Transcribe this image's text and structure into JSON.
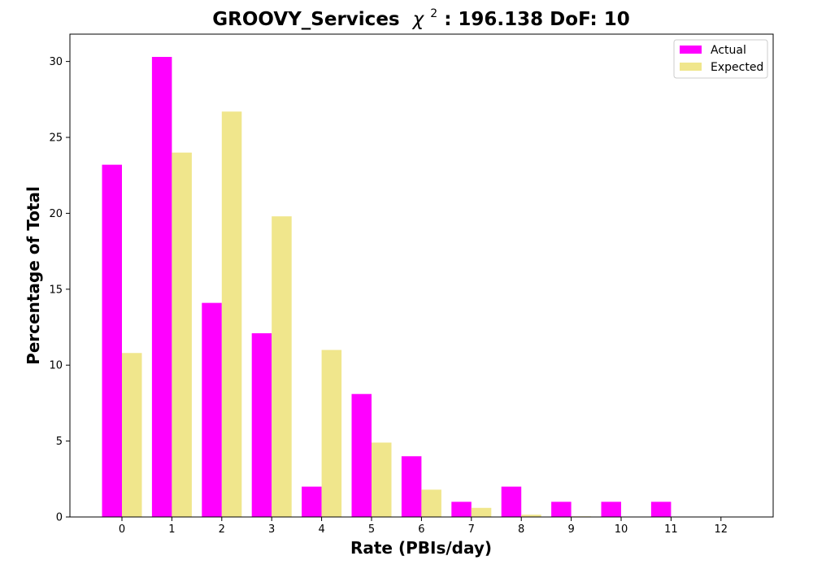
{
  "chart_data": {
    "type": "bar",
    "title": "GROOVY_Services",
    "title_chi_symbol": "χ",
    "title_chi_exponent": "2",
    "title_suffix": ": 196.138 DoF: 10",
    "xlabel": "Rate (PBIs/day)",
    "ylabel": "Percentage of Total",
    "categories": [
      "0",
      "1",
      "2",
      "3",
      "4",
      "5",
      "6",
      "7",
      "8",
      "9",
      "10",
      "11",
      "12"
    ],
    "series": [
      {
        "name": "Actual",
        "color": "#ff00ff",
        "values": [
          23.2,
          30.3,
          14.1,
          12.1,
          2.0,
          8.1,
          4.0,
          1.0,
          2.0,
          1.0,
          1.0,
          1.0,
          0.0
        ]
      },
      {
        "name": "Expected",
        "color": "#f0e68c",
        "values": [
          10.8,
          24.0,
          26.7,
          19.8,
          11.0,
          4.9,
          1.8,
          0.6,
          0.15,
          0.04,
          0.01,
          0.0,
          0.0
        ]
      }
    ],
    "ylim": [
      0,
      31.8
    ],
    "yticks": [
      0,
      5,
      10,
      15,
      20,
      25,
      30
    ],
    "grid": false,
    "legend_position": "top-right"
  }
}
